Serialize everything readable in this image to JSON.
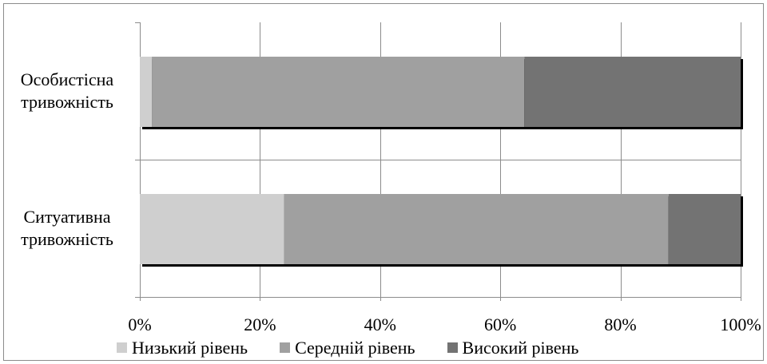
{
  "chart_data": {
    "type": "bar",
    "orientation": "horizontal",
    "stacked": "percent",
    "categories": [
      [
        "Особистісна",
        "тривожність"
      ],
      [
        "Ситуативна",
        "тривожність"
      ]
    ],
    "series": [
      {
        "name": "Низький рівень",
        "color": "#cfcfcf",
        "values": [
          2,
          24
        ]
      },
      {
        "name": "Середній рівень",
        "color": "#a0a0a0",
        "values": [
          62,
          64
        ]
      },
      {
        "name": "Високий рівень",
        "color": "#737373",
        "values": [
          36,
          12
        ]
      }
    ],
    "xlim": [
      0,
      100
    ],
    "xticks": [
      "0%",
      "20%",
      "40%",
      "60%",
      "80%",
      "100%"
    ],
    "grid": "vertical",
    "legend_position": "bottom",
    "title": "",
    "xlabel": "",
    "ylabel": ""
  }
}
